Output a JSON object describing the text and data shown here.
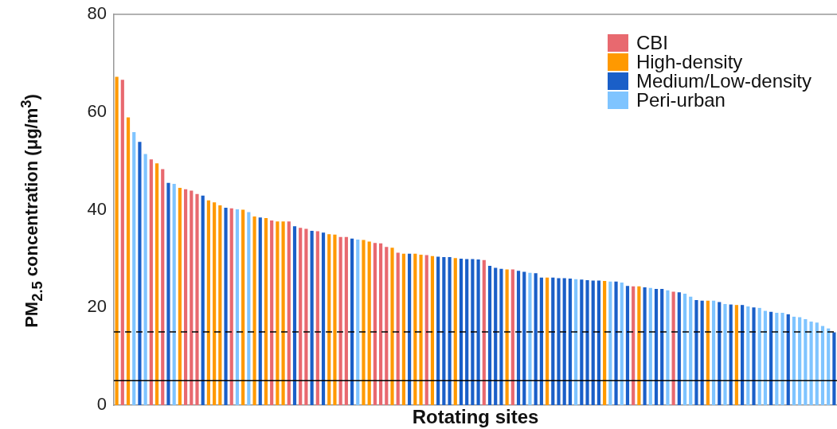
{
  "chart_data": {
    "type": "bar",
    "xlabel": "Rotating sites",
    "ylabel": "PM$_{2.5}$ concentration (μg/m$^{3}$)",
    "categories": [
      null,
      null,
      null,
      null,
      null,
      null,
      null,
      null,
      null,
      null,
      null,
      null,
      null,
      null,
      null,
      null,
      null,
      null,
      null,
      null,
      null,
      null,
      null,
      null,
      null,
      null,
      null,
      null,
      null,
      null,
      null,
      null,
      null,
      null,
      null,
      null,
      null,
      null,
      null,
      null,
      null,
      null,
      null,
      null,
      null,
      null,
      null,
      null,
      null,
      null,
      null,
      null,
      null,
      null,
      null,
      null,
      null,
      null,
      null,
      null,
      null,
      null,
      null,
      null,
      null,
      null,
      null,
      null,
      null,
      null,
      null,
      null,
      null,
      null,
      null,
      null,
      null,
      null,
      null,
      null,
      null,
      null,
      null,
      null,
      null,
      null,
      null,
      null,
      null,
      null,
      null,
      null,
      null,
      null,
      null,
      null,
      null,
      null,
      null,
      null,
      null,
      null,
      null,
      null,
      null,
      null,
      null,
      null,
      null,
      null,
      null,
      null,
      null,
      null,
      null,
      null,
      null,
      null,
      null,
      null,
      null,
      null,
      null,
      null,
      null,
      null
    ],
    "series": [
      {
        "name": "CBI",
        "color": "#e8696f",
        "values": [
          null,
          66.6,
          null,
          null,
          null,
          null,
          50.3,
          null,
          48.3,
          null,
          null,
          null,
          44.2,
          43.9,
          43.2,
          null,
          null,
          null,
          null,
          null,
          40.3,
          null,
          null,
          null,
          null,
          null,
          null,
          37.8,
          null,
          null,
          37.6,
          null,
          36.3,
          36.1,
          null,
          35.6,
          null,
          null,
          null,
          34.4,
          34.4,
          null,
          null,
          null,
          null,
          33.2,
          33.1,
          32.4,
          null,
          31.2,
          null,
          null,
          null,
          null,
          30.7,
          null,
          null,
          null,
          null,
          null,
          null,
          null,
          null,
          null,
          29.7,
          null,
          null,
          null,
          null,
          27.8,
          null,
          null,
          null,
          null,
          null,
          null,
          null,
          null,
          null,
          null,
          null,
          null,
          null,
          null,
          null,
          null,
          null,
          null,
          null,
          null,
          24.3,
          null,
          null,
          null,
          null,
          null,
          null,
          23.2,
          null,
          null,
          null,
          null,
          null,
          null,
          null,
          null,
          null,
          null,
          null,
          null,
          null,
          null,
          null,
          null,
          null,
          null,
          null,
          null,
          null,
          null,
          null,
          null,
          null,
          null,
          null,
          null
        ]
      },
      {
        "name": "High-density",
        "color": "#ff9900",
        "values": [
          67.2,
          null,
          58.9,
          null,
          null,
          null,
          null,
          49.5,
          null,
          null,
          null,
          44.5,
          null,
          null,
          null,
          null,
          41.9,
          41.5,
          40.9,
          null,
          null,
          null,
          40.0,
          null,
          38.6,
          null,
          38.3,
          null,
          37.6,
          37.6,
          null,
          null,
          null,
          null,
          null,
          null,
          null,
          35.0,
          34.9,
          null,
          null,
          null,
          null,
          33.8,
          33.5,
          null,
          null,
          null,
          32.2,
          null,
          31.0,
          null,
          31.0,
          30.8,
          null,
          30.5,
          null,
          null,
          null,
          30.1,
          null,
          null,
          null,
          null,
          null,
          null,
          null,
          null,
          27.8,
          null,
          null,
          null,
          null,
          null,
          null,
          26.1,
          null,
          null,
          null,
          null,
          null,
          null,
          null,
          null,
          null,
          25.4,
          null,
          null,
          null,
          null,
          null,
          24.3,
          null,
          null,
          null,
          null,
          null,
          null,
          null,
          null,
          null,
          null,
          null,
          21.4,
          null,
          null,
          null,
          null,
          20.5,
          null,
          null,
          null,
          null,
          null,
          null,
          null,
          null,
          null,
          null,
          null,
          null,
          null,
          null,
          null,
          null,
          null
        ]
      },
      {
        "name": "Medium/Low-density",
        "color": "#1a5fc8",
        "values": [
          null,
          null,
          null,
          null,
          53.9,
          null,
          null,
          null,
          null,
          45.5,
          null,
          null,
          null,
          null,
          null,
          42.9,
          null,
          null,
          null,
          40.4,
          null,
          null,
          null,
          null,
          null,
          38.4,
          null,
          null,
          null,
          null,
          null,
          36.6,
          null,
          null,
          35.7,
          null,
          35.3,
          null,
          null,
          null,
          null,
          34.1,
          null,
          null,
          null,
          null,
          null,
          null,
          null,
          null,
          null,
          31.0,
          null,
          null,
          null,
          null,
          30.4,
          30.3,
          30.3,
          null,
          30.0,
          29.9,
          29.9,
          29.8,
          null,
          28.5,
          28.1,
          27.9,
          null,
          null,
          27.5,
          27.3,
          null,
          27.0,
          26.1,
          null,
          26.1,
          26.0,
          26.0,
          25.9,
          null,
          25.7,
          25.6,
          25.5,
          25.5,
          null,
          null,
          25.3,
          null,
          24.4,
          null,
          null,
          24.1,
          null,
          23.8,
          23.8,
          null,
          null,
          23.1,
          null,
          null,
          21.5,
          21.4,
          null,
          null,
          21.1,
          null,
          20.6,
          null,
          20.5,
          null,
          20.0,
          null,
          null,
          19.1,
          null,
          null,
          18.6,
          null,
          null,
          null,
          null,
          null,
          null,
          null,
          14.9
        ]
      },
      {
        "name": "Peri-urban",
        "color": "#7fc4ff",
        "values": [
          null,
          null,
          null,
          55.9,
          null,
          51.4,
          null,
          null,
          null,
          null,
          45.3,
          null,
          null,
          null,
          null,
          null,
          null,
          null,
          null,
          null,
          null,
          40.1,
          null,
          39.5,
          null,
          null,
          null,
          null,
          null,
          null,
          null,
          null,
          null,
          null,
          null,
          null,
          null,
          null,
          null,
          null,
          null,
          null,
          33.9,
          null,
          null,
          null,
          null,
          null,
          null,
          null,
          null,
          null,
          null,
          null,
          null,
          null,
          null,
          null,
          null,
          null,
          null,
          null,
          null,
          null,
          null,
          null,
          null,
          null,
          null,
          null,
          null,
          null,
          27.1,
          null,
          null,
          null,
          null,
          null,
          null,
          null,
          25.8,
          null,
          null,
          null,
          null,
          null,
          25.3,
          null,
          25.1,
          null,
          null,
          null,
          null,
          24.0,
          null,
          null,
          23.5,
          null,
          null,
          22.8,
          22.2,
          null,
          null,
          null,
          21.4,
          null,
          20.7,
          null,
          null,
          null,
          20.2,
          null,
          19.9,
          19.3,
          null,
          18.9,
          18.9,
          null,
          18.1,
          18.0,
          17.6,
          17.1,
          16.9,
          16.2,
          15.7,
          null
        ]
      }
    ],
    "ylim": [
      0,
      80
    ],
    "yticks": [
      0,
      20,
      40,
      60,
      80
    ],
    "tick_labels": "y",
    "legend": "top right",
    "ref_lines": [
      {
        "axis": "y",
        "value": 15,
        "line_style": "dashed",
        "color": "#000000"
      },
      {
        "axis": "y",
        "value": 5,
        "line_style": "solid",
        "color": "#000000"
      }
    ]
  }
}
